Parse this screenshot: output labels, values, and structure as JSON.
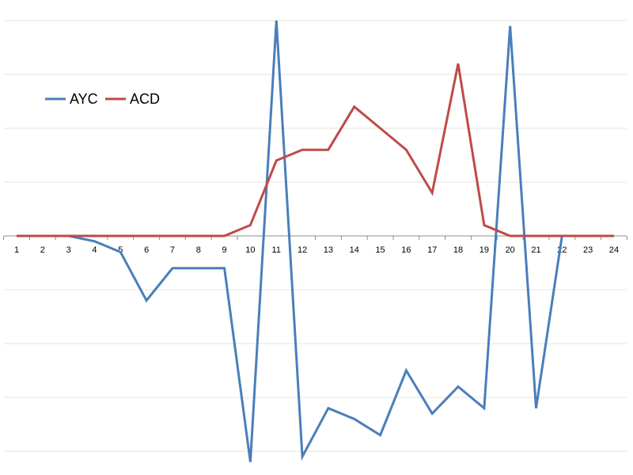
{
  "chart_data": {
    "type": "line",
    "title": "",
    "xlabel": "",
    "ylabel": "",
    "x": [
      "1",
      "2",
      "3",
      "4",
      "5",
      "6",
      "7",
      "8",
      "9",
      "10",
      "11",
      "12",
      "13",
      "14",
      "15",
      "16",
      "17",
      "18",
      "19",
      "20",
      "21",
      "22",
      "23",
      "24"
    ],
    "ylim": [
      -4.2,
      4.0
    ],
    "gridlines_y": [
      4,
      3,
      2,
      1,
      0,
      -1,
      -2,
      -3,
      -4
    ],
    "grid": true,
    "legend": "top-left",
    "series": [
      {
        "name": "AYC",
        "color": "#4a7ebb",
        "values": [
          0,
          0,
          0,
          -0.1,
          -0.3,
          -1.2,
          -0.6,
          -0.6,
          -0.6,
          -4.2,
          4.0,
          -4.1,
          -3.2,
          -3.4,
          -3.7,
          -2.5,
          -3.3,
          -2.8,
          -3.2,
          3.9,
          -3.2,
          0,
          0,
          0
        ]
      },
      {
        "name": "ACD",
        "color": "#be4b48",
        "values": [
          0,
          0,
          0,
          0,
          0,
          0,
          0,
          0,
          0,
          0.2,
          1.4,
          1.6,
          1.6,
          2.4,
          2.0,
          1.6,
          0.8,
          3.2,
          0.2,
          0,
          0,
          0,
          0,
          0
        ]
      }
    ]
  }
}
